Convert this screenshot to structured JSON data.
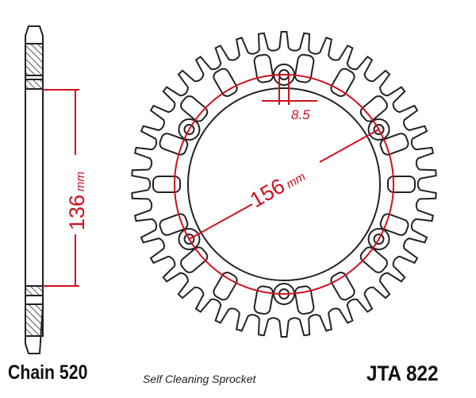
{
  "diagram": {
    "side_dimension": {
      "value": "136",
      "unit": "mm"
    },
    "bolt_circle_dimension": {
      "value": "156",
      "unit": "mm"
    },
    "bolt_hole_dimension": "8.5",
    "teeth": 42,
    "bolt_holes": 6,
    "colors": {
      "outline": "#222222",
      "dimension": "#d01020"
    }
  },
  "footer": {
    "chain": "Chain 520",
    "description": "Self Cleaning Sprocket",
    "part_number": "JTA 822"
  }
}
